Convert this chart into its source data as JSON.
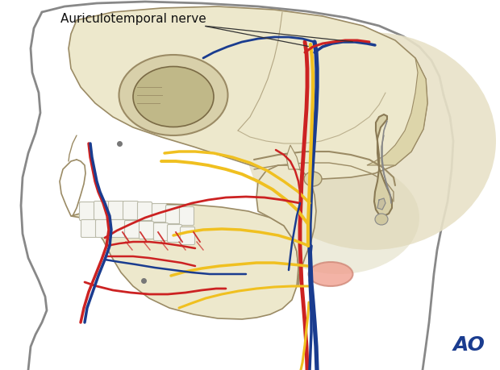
{
  "background_color": "#ffffff",
  "title_text": "Auriculotemporal nerve",
  "title_fontsize": 11,
  "ao_text": "AO",
  "ao_color": "#1a3c8f",
  "ao_fontsize": 18,
  "skull_color": "#ede8cc",
  "skull_color2": "#ddd5aa",
  "skull_edge_color": "#9b8b65",
  "skull_edge_lw": 1.2,
  "cranium_fill": "#e8e0c0",
  "nerve_yellow": "#f0c020",
  "artery_red": "#cc2222",
  "vein_blue": "#1a3c8f",
  "gray_outline": "#888888",
  "pink_structure": "#f0a090",
  "annotation_color": "#222222",
  "tooth_color": "#f5f5f0",
  "tooth_edge": "#bbbbaa"
}
